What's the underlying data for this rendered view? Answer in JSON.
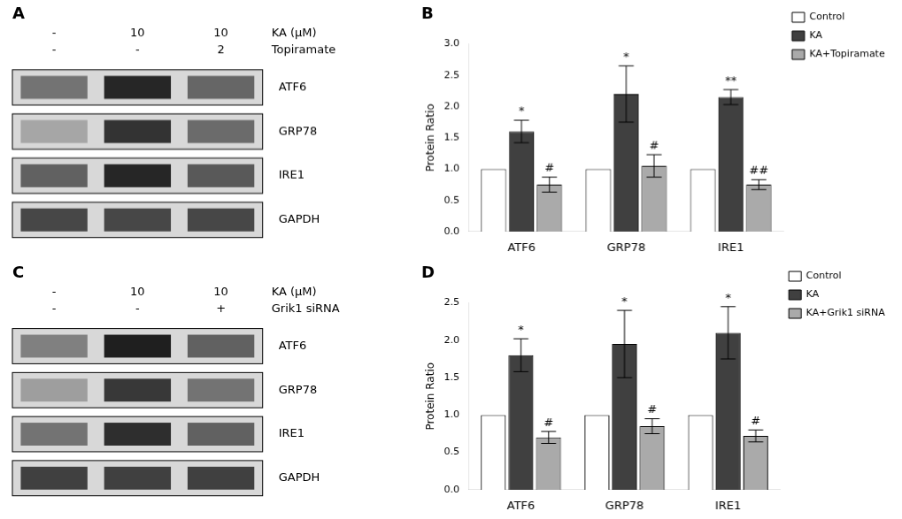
{
  "chart_data": [
    {
      "type": "blot",
      "title": "A",
      "header_rows": [
        {
          "label": "KA (μM)",
          "values": [
            "-",
            "10",
            "10"
          ]
        },
        {
          "label": "Topiramate",
          "values": [
            "-",
            "-",
            "2"
          ]
        }
      ],
      "categories": [
        "ATF6",
        "GRP78",
        "IRE1",
        "GAPDH"
      ],
      "cells": [
        [
          0.55,
          0.85,
          0.6
        ],
        [
          0.35,
          0.8,
          0.58
        ],
        [
          0.62,
          0.85,
          0.65
        ],
        [
          0.72,
          0.72,
          0.72
        ]
      ]
    },
    {
      "type": "bar",
      "title": "B",
      "categories": [
        "ATF6",
        "GRP78",
        "IRE1"
      ],
      "ylabel": "Protein Ratio",
      "ylim": [
        0,
        3.0
      ],
      "yticks": [
        {
          "value": 0,
          "label": "0.0"
        },
        0.5,
        {
          "value": 1.0,
          "label": "1.0"
        },
        1.5,
        {
          "value": 2.0,
          "label": "2.0"
        },
        2.5,
        {
          "value": 3.0,
          "label": "3.0"
        }
      ],
      "grid": false,
      "legend": "right",
      "series": [
        {
          "name": "Control",
          "color": "#ffffff",
          "values": [
            1.0,
            1.0,
            1.0
          ]
        },
        {
          "name": "KA",
          "color": "#404040",
          "values": [
            1.6,
            2.2,
            2.15
          ],
          "errors": [
            0.18,
            0.45,
            0.12
          ],
          "annotations": [
            "*",
            "*",
            "**"
          ]
        },
        {
          "name": "KA+Topiramate",
          "color": "#aaaaaa",
          "values": [
            0.75,
            1.05,
            0.75
          ],
          "errors": [
            0.12,
            0.18,
            0.08
          ],
          "annotations": [
            "#",
            "#",
            "##"
          ]
        }
      ]
    },
    {
      "type": "blot",
      "title": "C",
      "header_rows": [
        {
          "label": "KA (μM)",
          "values": [
            "-",
            "10",
            "10"
          ]
        },
        {
          "label": "Grik1 siRNA",
          "values": [
            "-",
            "-",
            "+"
          ]
        }
      ],
      "categories": [
        "ATF6",
        "GRP78",
        "IRE1",
        "GAPDH"
      ],
      "cells": [
        [
          0.5,
          0.88,
          0.62
        ],
        [
          0.38,
          0.78,
          0.55
        ],
        [
          0.55,
          0.82,
          0.62
        ],
        [
          0.75,
          0.75,
          0.75
        ]
      ]
    },
    {
      "type": "bar",
      "title": "D",
      "categories": [
        "ATF6",
        "GRP78",
        "IRE1"
      ],
      "ylabel": "Protein Ratio",
      "ylim": [
        0,
        2.5
      ],
      "yticks": [
        {
          "value": 0,
          "label": "0.0"
        },
        0.5,
        {
          "value": 1.0,
          "label": "1.0"
        },
        1.5,
        {
          "value": 2.0,
          "label": "2.0"
        },
        2.5
      ],
      "grid": false,
      "legend": "right",
      "series": [
        {
          "name": "Control",
          "color": "#ffffff",
          "values": [
            1.0,
            1.0,
            1.0
          ]
        },
        {
          "name": "KA",
          "color": "#404040",
          "values": [
            1.8,
            1.95,
            2.1
          ],
          "errors": [
            0.22,
            0.45,
            0.35
          ],
          "annotations": [
            "*",
            "*",
            "*"
          ]
        },
        {
          "name": "KA+Grik1 siRNA",
          "color": "#aaaaaa",
          "values": [
            0.7,
            0.85,
            0.72
          ],
          "errors": [
            0.08,
            0.1,
            0.08
          ],
          "annotations": [
            "#",
            "#",
            "#"
          ]
        }
      ]
    }
  ]
}
